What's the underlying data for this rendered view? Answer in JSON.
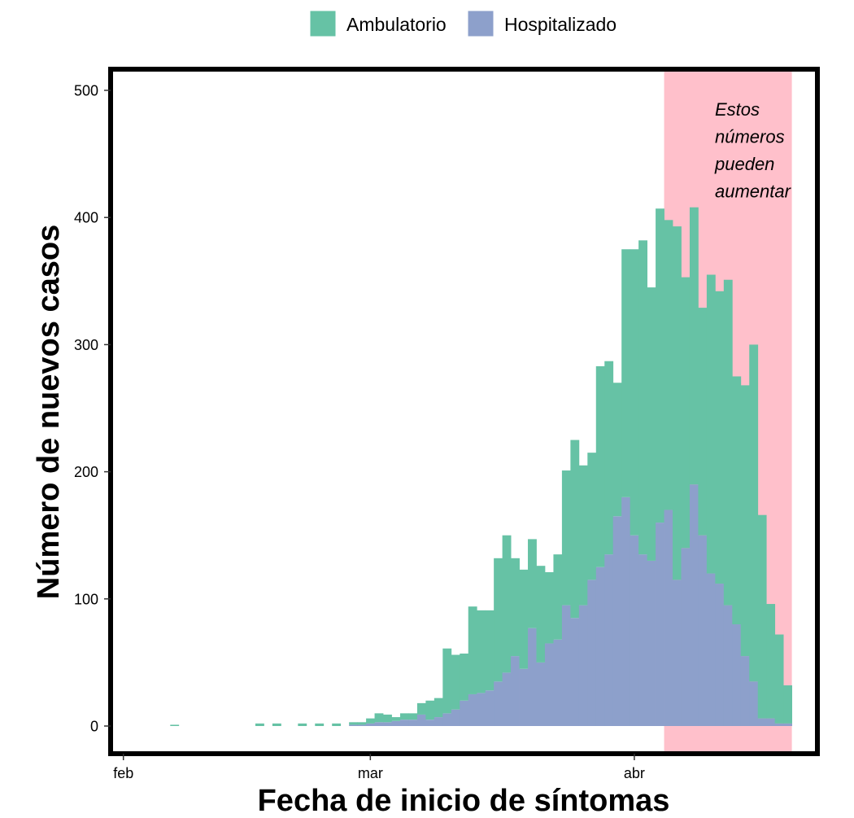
{
  "chart_data": {
    "type": "bar",
    "stacked": true,
    "title": "",
    "xlabel": "Fecha de inicio de síntomas",
    "ylabel": "Número de nuevos casos",
    "ylim": [
      0,
      530
    ],
    "xlim_days": [
      -1.5,
      81.5
    ],
    "yticks": [
      0,
      100,
      200,
      300,
      400,
      500
    ],
    "xticks": [
      {
        "label": "feb",
        "day": 0
      },
      {
        "label": "mar",
        "day": 29
      },
      {
        "label": "abr",
        "day": 60
      }
    ],
    "legend_position": "top",
    "colors": {
      "Ambulatorio": "#66c2a5",
      "Hospitalizado": "#8da0cb",
      "shade": "#ffc0cb",
      "panel_border": "#000000"
    },
    "shaded_region": {
      "start_day": 63.5,
      "end_day": 78.5,
      "color": "#ffc0cb"
    },
    "annotation": {
      "lines": [
        "Estos",
        "números",
        "pueden",
        "aumentar"
      ]
    },
    "day_offsets": [
      6,
      16,
      18,
      21,
      23,
      25,
      27,
      28,
      29,
      30,
      31,
      32,
      33,
      34,
      35,
      36,
      37,
      38,
      39,
      40,
      41,
      42,
      43,
      44,
      45,
      46,
      47,
      48,
      49,
      50,
      51,
      52,
      53,
      54,
      55,
      56,
      57,
      58,
      59,
      60,
      61,
      62,
      63,
      64,
      65,
      66,
      67,
      68,
      69,
      70,
      71,
      72,
      73,
      74,
      75,
      76,
      77,
      78
    ],
    "series": [
      {
        "name": "Hospitalizado",
        "values": [
          0,
          0,
          0,
          0,
          0,
          0,
          1,
          1,
          2,
          3,
          3,
          4,
          5,
          5,
          9,
          5,
          7,
          10,
          13,
          20,
          25,
          26,
          28,
          35,
          42,
          55,
          45,
          77,
          50,
          65,
          68,
          95,
          85,
          95,
          115,
          125,
          135,
          165,
          180,
          150,
          135,
          130,
          160,
          170,
          115,
          140,
          190,
          150,
          120,
          112,
          95,
          80,
          55,
          35,
          6,
          6,
          2,
          2
        ]
      },
      {
        "name": "Ambulatorio",
        "values": [
          1,
          2,
          2,
          2,
          2,
          2,
          2,
          2,
          4,
          7,
          6,
          3,
          5,
          5,
          9,
          15,
          15,
          51,
          43,
          37,
          69,
          65,
          63,
          97,
          108,
          77,
          78,
          70,
          76,
          56,
          67,
          106,
          140,
          110,
          100,
          158,
          152,
          105,
          195,
          225,
          247,
          215,
          247,
          228,
          278,
          213,
          218,
          179,
          235,
          230,
          256,
          195,
          213,
          265,
          160,
          90,
          70,
          30
        ]
      }
    ]
  },
  "legend": {
    "items": [
      {
        "label": "Ambulatorio",
        "color": "#66c2a5"
      },
      {
        "label": "Hospitalizado",
        "color": "#8da0cb"
      }
    ]
  }
}
